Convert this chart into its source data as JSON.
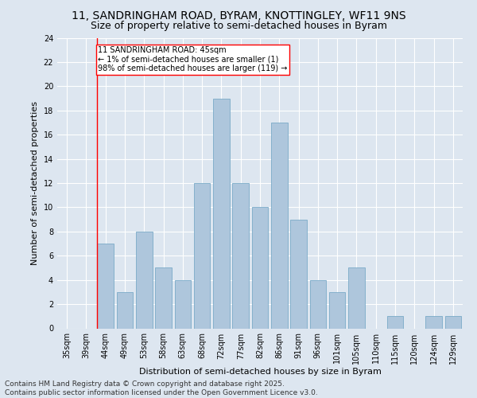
{
  "title1": "11, SANDRINGHAM ROAD, BYRAM, KNOTTINGLEY, WF11 9NS",
  "title2": "Size of property relative to semi-detached houses in Byram",
  "xlabel": "Distribution of semi-detached houses by size in Byram",
  "ylabel": "Number of semi-detached properties",
  "categories": [
    "35sqm",
    "39sqm",
    "44sqm",
    "49sqm",
    "53sqm",
    "58sqm",
    "63sqm",
    "68sqm",
    "72sqm",
    "77sqm",
    "82sqm",
    "86sqm",
    "91sqm",
    "96sqm",
    "101sqm",
    "105sqm",
    "110sqm",
    "115sqm",
    "120sqm",
    "124sqm",
    "129sqm"
  ],
  "values": [
    0,
    0,
    7,
    3,
    8,
    5,
    4,
    12,
    19,
    12,
    10,
    17,
    9,
    4,
    3,
    5,
    0,
    1,
    0,
    1,
    1
  ],
  "red_line_index": 2,
  "annotation_text": "11 SANDRINGHAM ROAD: 45sqm\n← 1% of semi-detached houses are smaller (1)\n98% of semi-detached houses are larger (119) →",
  "ylim": [
    0,
    24
  ],
  "yticks": [
    0,
    2,
    4,
    6,
    8,
    10,
    12,
    14,
    16,
    18,
    20,
    22,
    24
  ],
  "footer": "Contains HM Land Registry data © Crown copyright and database right 2025.\nContains public sector information licensed under the Open Government Licence v3.0.",
  "bg_color": "#dde6f0",
  "plot_bg_color": "#dde6f0",
  "grid_color": "#ffffff",
  "bar_color": "#aec6dc",
  "title1_fontsize": 10,
  "title2_fontsize": 9,
  "axis_label_fontsize": 8,
  "tick_fontsize": 7,
  "annotation_fontsize": 7,
  "footer_fontsize": 6.5
}
